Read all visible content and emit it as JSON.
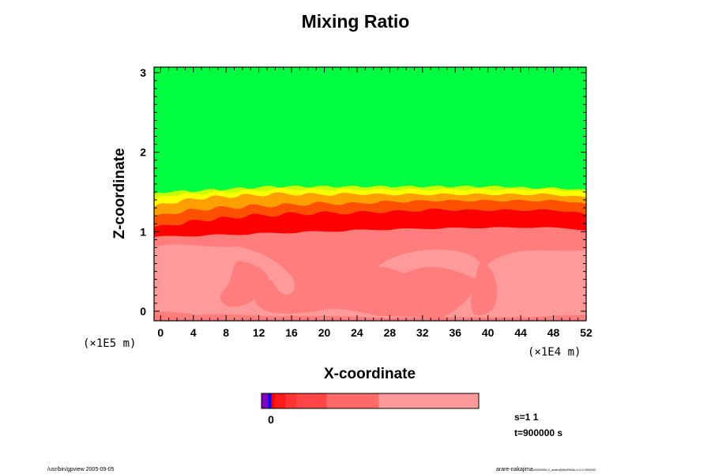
{
  "chart_data": {
    "type": "heatmap",
    "title": "Mixing Ratio",
    "xlabel": "X-coordinate",
    "ylabel": "Z-coordinate",
    "x_scale_note": "(×1E4 m)",
    "y_scale_note": "(×1E5 m)",
    "xlim": [
      -0.8,
      52
    ],
    "ylim": [
      -0.12,
      3.07
    ],
    "x_ticks": [
      0,
      4,
      8,
      12,
      16,
      20,
      24,
      28,
      32,
      36,
      40,
      44,
      48,
      52
    ],
    "y_ticks": [
      0,
      1,
      2,
      3
    ],
    "regions": [
      {
        "name": "upper",
        "z_range": [
          1.5,
          3.07
        ],
        "color": "#00ff40"
      },
      {
        "name": "transition",
        "z_range": [
          1.05,
          1.5
        ],
        "colors": [
          "#ffff00",
          "#c8ff00",
          "#ffa000",
          "#ff5000"
        ]
      },
      {
        "name": "interface",
        "z_range": [
          0.98,
          1.08
        ],
        "color": "#ff0000"
      },
      {
        "name": "lower",
        "z_range": [
          -0.12,
          1.0
        ],
        "colors": [
          "#ff7d7d",
          "#ff9a9a"
        ]
      }
    ],
    "colorbar": {
      "colors": [
        "#8000c0",
        "#0000ff",
        "#ff0000",
        "#ff1a1a",
        "#ff3333",
        "#ff4545",
        "#ff6a6a",
        "#ff7d7d",
        "#ff9a9a"
      ],
      "fractions": [
        0.03,
        0.015,
        0.015,
        0.05,
        0.05,
        0.14,
        0.24,
        0.0,
        0.46
      ],
      "tick_label": "0"
    }
  },
  "info": {
    "s": "s=1 1",
    "t": "t=900000 s"
  },
  "footer": {
    "left": "/usr/bin/gpview 2005-09-05",
    "right_main": "arare-nakajima",
    "right_small": "20050905-2_arare@MixRtNAi,x=1,t=900000"
  }
}
